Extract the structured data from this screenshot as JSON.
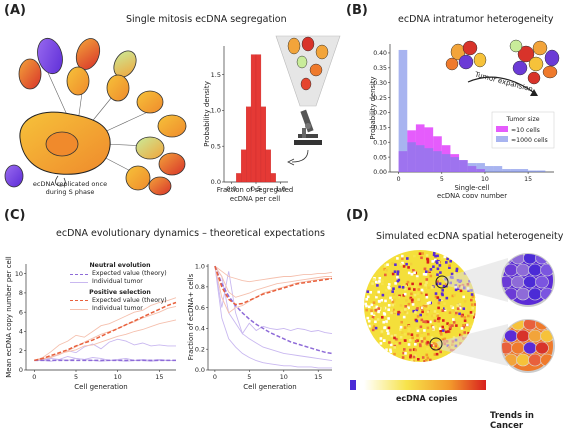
{
  "figure": {
    "brand": "Trends in Cancer",
    "colors": {
      "red": "#e53935",
      "pink": "#e040fb",
      "blue": "#7b8fe6",
      "orange": "#e8603c",
      "purple": "#8e6bd8",
      "cell": "#f4a62a"
    }
  },
  "panel_a": {
    "label": "(A)",
    "title": "Single mitosis ecDNA segregation",
    "cell_caption_1": "ecDNA replicated once",
    "cell_caption_2": "during S phase",
    "chart_data": {
      "type": "bar",
      "xlabel_1": "Fraction of segregated",
      "xlabel_2": "ecDNA per cell",
      "ylabel": "Probability density",
      "xlim": [
        -0.15,
        1.15
      ],
      "ylim": [
        0,
        1.9
      ],
      "xticks": [
        "0.0",
        "0.5",
        "1.0"
      ],
      "yticks": [
        "0.0",
        "0.5",
        "1.0",
        "1.5"
      ],
      "bins": [
        [
          0.1,
          0.2,
          0.12
        ],
        [
          0.2,
          0.3,
          0.45
        ],
        [
          0.3,
          0.4,
          1.05
        ],
        [
          0.4,
          0.5,
          1.78
        ],
        [
          0.5,
          0.6,
          1.78
        ],
        [
          0.6,
          0.7,
          1.05
        ],
        [
          0.7,
          0.8,
          0.45
        ],
        [
          0.8,
          0.9,
          0.12
        ]
      ]
    }
  },
  "panel_b": {
    "label": "(B)",
    "title": "ecDNA intratumor heterogeneity",
    "arrow_label": "Tumor expansion",
    "chart_data": {
      "type": "bar",
      "xlabel_1": "Single-cell",
      "xlabel_2": "ecDNA copy number",
      "ylabel": "Probability density",
      "xlim": [
        -1,
        18
      ],
      "ylim": [
        0,
        0.43
      ],
      "xticks": [
        "0",
        "5",
        "10",
        "15"
      ],
      "yticks": [
        "0.00",
        "0.05",
        "0.10",
        "0.15",
        "0.20",
        "0.25",
        "0.30",
        "0.35",
        "0.40"
      ],
      "legend_title": "Tumor size",
      "series": [
        {
          "name": "≈10 cells",
          "bins": [
            [
              0,
              1,
              0.07
            ],
            [
              1,
              2,
              0.14
            ],
            [
              2,
              3,
              0.16
            ],
            [
              3,
              4,
              0.15
            ],
            [
              4,
              5,
              0.12
            ],
            [
              5,
              6,
              0.09
            ],
            [
              6,
              7,
              0.06
            ],
            [
              7,
              8,
              0.04
            ],
            [
              8,
              9,
              0.02
            ],
            [
              9,
              10,
              0.01
            ]
          ]
        },
        {
          "name": "≈1000 cells",
          "bins": [
            [
              0,
              1,
              0.41
            ],
            [
              1,
              2,
              0.1
            ],
            [
              2,
              3,
              0.09
            ],
            [
              3,
              4,
              0.08
            ],
            [
              4,
              5,
              0.07
            ],
            [
              5,
              6,
              0.06
            ],
            [
              6,
              7,
              0.05
            ],
            [
              7,
              8,
              0.04
            ],
            [
              8,
              9,
              0.03
            ],
            [
              9,
              10,
              0.03
            ],
            [
              10,
              11,
              0.02
            ],
            [
              11,
              12,
              0.02
            ],
            [
              12,
              13,
              0.01
            ],
            [
              13,
              14,
              0.01
            ],
            [
              14,
              15,
              0.01
            ],
            [
              15,
              16,
              0.005
            ],
            [
              16,
              17,
              0.005
            ]
          ]
        }
      ]
    }
  },
  "panel_c": {
    "label": "(C)",
    "title": "ecDNA evolutionary dynamics – theoretical expectations",
    "legend": {
      "neutral_title": "Neutral evolution",
      "positive_title": "Positive selection",
      "expected": "Expected value (theory)",
      "individual": "Individual tumor"
    },
    "chart_left": {
      "type": "line",
      "xlabel": "Cell generation",
      "ylabel": "Mean ecDNA copy number per cell",
      "xlim": [
        -1,
        17
      ],
      "ylim": [
        0,
        11
      ],
      "xticks": [
        "0",
        "5",
        "10",
        "15"
      ],
      "yticks": [
        "0",
        "2",
        "4",
        "6",
        "8",
        "10"
      ],
      "series": [
        {
          "name": "Expected value (theory)",
          "group": "Neutral evolution",
          "x": [
            0,
            17
          ],
          "y": [
            1,
            1
          ]
        },
        {
          "name": "Expected value (theory)",
          "group": "Positive selection",
          "x": [
            0,
            1,
            2,
            3,
            4,
            5,
            6,
            7,
            8,
            9,
            10,
            11,
            12,
            13,
            14,
            15,
            16,
            17
          ],
          "y": [
            1,
            1.2,
            1.5,
            1.8,
            2.1,
            2.5,
            2.8,
            3.1,
            3.5,
            3.9,
            4.3,
            4.7,
            5.1,
            5.5,
            5.9,
            6.3,
            6.7,
            7.0
          ]
        }
      ],
      "individual_neutral": [
        [
          1,
          1,
          1.3,
          1.6,
          2.0,
          1.8,
          2.4,
          2.7,
          2.2,
          2.9,
          3.2,
          3.0,
          2.6,
          2.8,
          2.5,
          2.6,
          2.5,
          2.5
        ],
        [
          1,
          1,
          1.2,
          1.1,
          1.4,
          1.2,
          1.1,
          1.3,
          1.2,
          1.0,
          1.1,
          1.2,
          1.0,
          1.1,
          1.0,
          1.1,
          1.0,
          1.0
        ],
        [
          1,
          1,
          0.9,
          1.1,
          1.0,
          1.2,
          1.1,
          1.0,
          0.9,
          1.0,
          1.0,
          0.9,
          1.0,
          1.0,
          0.9,
          1.0,
          1.0,
          1.0
        ]
      ],
      "individual_positive": [
        [
          1,
          1.3,
          1.9,
          2.6,
          3.0,
          3.6,
          3.4,
          4.0,
          4.6,
          4.8,
          5.2,
          5.6,
          6.0,
          6.2,
          6.7,
          7.0,
          7.2,
          7.5
        ],
        [
          1,
          1.1,
          1.4,
          1.6,
          2.0,
          2.4,
          2.9,
          3.3,
          3.7,
          4.0,
          4.3,
          4.7,
          5.0,
          5.4,
          5.7,
          6.0,
          6.4,
          6.6
        ],
        [
          1,
          1.2,
          1.3,
          1.7,
          1.9,
          2.1,
          2.5,
          2.6,
          2.9,
          3.2,
          3.5,
          3.7,
          4.0,
          4.2,
          4.5,
          4.8,
          5.0,
          5.2
        ]
      ]
    },
    "chart_right": {
      "type": "line",
      "xlabel": "Cell generation",
      "ylabel": "Fraction of ecDNA+ cells",
      "xlim": [
        -1,
        17
      ],
      "ylim": [
        0,
        1.02
      ],
      "xticks": [
        "0",
        "5",
        "10",
        "15"
      ],
      "yticks": [
        "0.0",
        "0.2",
        "0.4",
        "0.6",
        "0.8",
        "1.0"
      ],
      "series": [
        {
          "name": "Expected value (theory)",
          "group": "Neutral evolution",
          "x": [
            0,
            1,
            2,
            3,
            4,
            5,
            6,
            7,
            8,
            9,
            10,
            11,
            12,
            13,
            14,
            15,
            16,
            17
          ],
          "y": [
            1,
            0.83,
            0.71,
            0.62,
            0.55,
            0.49,
            0.44,
            0.4,
            0.36,
            0.33,
            0.3,
            0.27,
            0.25,
            0.23,
            0.21,
            0.19,
            0.17,
            0.16
          ]
        },
        {
          "name": "Expected value (theory)",
          "group": "Positive selection",
          "x": [
            0,
            1,
            2,
            3,
            4,
            5,
            6,
            7,
            8,
            9,
            10,
            11,
            12,
            13,
            14,
            15,
            16,
            17
          ],
          "y": [
            1,
            0.8,
            0.68,
            0.63,
            0.64,
            0.67,
            0.7,
            0.73,
            0.75,
            0.77,
            0.79,
            0.81,
            0.83,
            0.84,
            0.85,
            0.86,
            0.87,
            0.88
          ]
        }
      ],
      "individual_neutral": [
        [
          1,
          0.6,
          0.95,
          0.55,
          0.35,
          0.45,
          0.38,
          0.42,
          0.4,
          0.39,
          0.4,
          0.38,
          0.4,
          0.39,
          0.37,
          0.38,
          0.36,
          0.35
        ],
        [
          1,
          0.9,
          0.55,
          0.45,
          0.35,
          0.3,
          0.26,
          0.22,
          0.2,
          0.18,
          0.16,
          0.15,
          0.14,
          0.13,
          0.12,
          0.11,
          0.1,
          0.09
        ],
        [
          1,
          0.5,
          0.3,
          0.22,
          0.16,
          0.12,
          0.09,
          0.07,
          0.06,
          0.05,
          0.04,
          0.04,
          0.03,
          0.03,
          0.03,
          0.02,
          0.02,
          0.02
        ]
      ],
      "individual_positive": [
        [
          1,
          0.9,
          0.75,
          0.7,
          0.72,
          0.74,
          0.77,
          0.79,
          0.81,
          0.83,
          0.84,
          0.85,
          0.86,
          0.87,
          0.88,
          0.89,
          0.9,
          0.9
        ],
        [
          1,
          0.7,
          0.55,
          0.6,
          0.62,
          0.66,
          0.7,
          0.74,
          0.76,
          0.78,
          0.8,
          0.82,
          0.84,
          0.85,
          0.86,
          0.87,
          0.88,
          0.88
        ],
        [
          1,
          0.95,
          0.9,
          0.88,
          0.86,
          0.85,
          0.86,
          0.87,
          0.88,
          0.89,
          0.9,
          0.9,
          0.91,
          0.92,
          0.92,
          0.93,
          0.93,
          0.94
        ]
      ]
    }
  },
  "panel_d": {
    "label": "(D)",
    "title": "Simulated ecDNA spatial heterogeneity",
    "colorbar_label": "ecDNA copies"
  }
}
